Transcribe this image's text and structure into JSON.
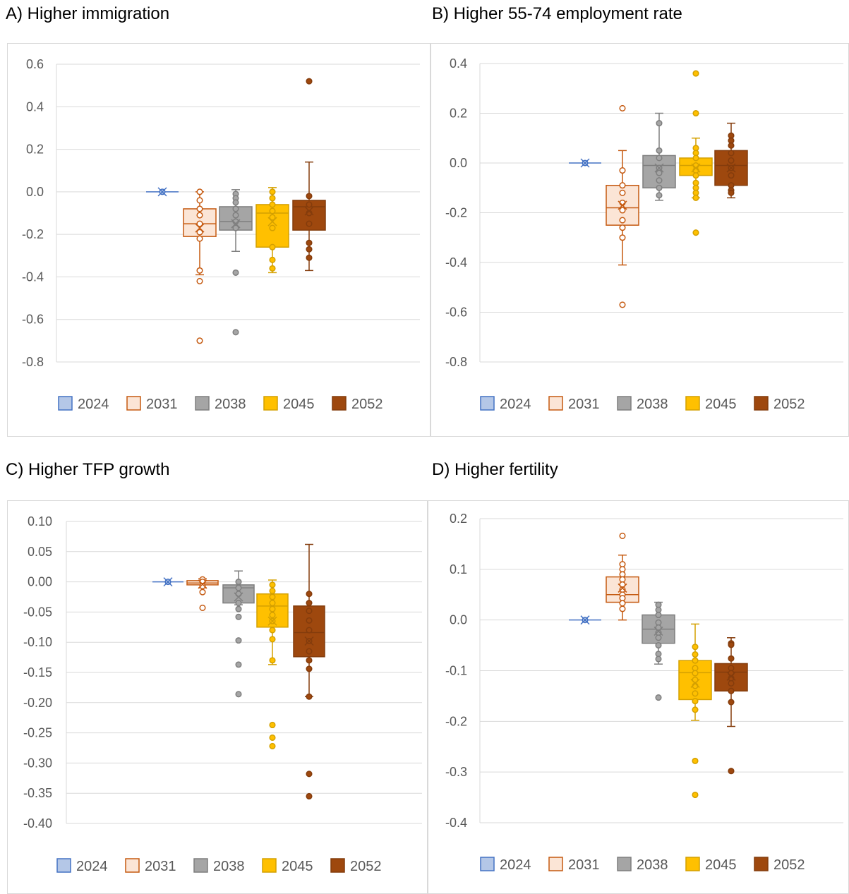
{
  "panels": [
    {
      "title": "A) Higher immigration"
    },
    {
      "title": "B) Higher 55-74 employment rate"
    },
    {
      "title": "C) Higher TFP growth"
    },
    {
      "title": "D) Higher fertility"
    }
  ],
  "colors": {
    "2024": {
      "fill": "#b4c7e7",
      "stroke": "#4472c4"
    },
    "2031": {
      "fill": "#fbe5d6",
      "stroke": "#c55a11"
    },
    "2038": {
      "fill": "#a5a5a5",
      "stroke": "#7f7f7f"
    },
    "2045": {
      "fill": "#ffc000",
      "stroke": "#d4a000"
    },
    "2052": {
      "fill": "#9e480e",
      "stroke": "#843c0c"
    },
    "grid": "#d9d9d9"
  },
  "chart_data": [
    {
      "type": "box",
      "title": "A) Higher immigration",
      "ylim": [
        -0.8,
        0.6
      ],
      "yticks": [
        "0.6",
        "0.4",
        "0.2",
        "0.0",
        "-0.2",
        "-0.4",
        "-0.6",
        "-0.8"
      ],
      "yticks_values": [
        0.6,
        0.4,
        0.2,
        0.0,
        -0.2,
        -0.4,
        -0.6,
        -0.8
      ],
      "grid": true,
      "legend": "bottom",
      "series": [
        {
          "name": "2024",
          "min": 0.0,
          "q1": 0.0,
          "median": 0.0,
          "q3": 0.0,
          "max": 0.0,
          "mean": 0.0,
          "points": [
            0.0
          ]
        },
        {
          "name": "2031",
          "min": -0.39,
          "q1": -0.21,
          "median": -0.15,
          "q3": -0.08,
          "max": 0.0,
          "mean": -0.17,
          "points": [
            0.0,
            -0.04,
            -0.08,
            -0.11,
            -0.15,
            -0.19,
            -0.22,
            -0.37,
            -0.42,
            -0.7
          ]
        },
        {
          "name": "2038",
          "min": -0.28,
          "q1": -0.18,
          "median": -0.14,
          "q3": -0.07,
          "max": 0.01,
          "mean": -0.15,
          "points": [
            -0.01,
            -0.03,
            -0.05,
            -0.08,
            -0.11,
            -0.14,
            -0.17,
            -0.38,
            -0.66
          ]
        },
        {
          "name": "2045",
          "min": -0.38,
          "q1": -0.26,
          "median": -0.1,
          "q3": -0.06,
          "max": 0.02,
          "mean": -0.14,
          "points": [
            0.0,
            -0.03,
            -0.06,
            -0.09,
            -0.12,
            -0.17,
            -0.26,
            -0.32,
            -0.36
          ]
        },
        {
          "name": "2052",
          "min": -0.37,
          "q1": -0.18,
          "median": -0.07,
          "q3": -0.04,
          "max": 0.14,
          "mean": -0.09,
          "points": [
            0.52,
            -0.02,
            -0.06,
            -0.1,
            -0.15,
            -0.24,
            -0.27,
            -0.31
          ]
        }
      ]
    },
    {
      "type": "box",
      "title": "B) Higher 55-74 employment rate",
      "ylim": [
        -0.8,
        0.4
      ],
      "yticks": [
        "0.4",
        "0.2",
        "0.0",
        "-0.2",
        "-0.4",
        "-0.6",
        "-0.8"
      ],
      "yticks_values": [
        0.4,
        0.2,
        0.0,
        -0.2,
        -0.4,
        -0.6,
        -0.8
      ],
      "grid": true,
      "legend": "bottom",
      "series": [
        {
          "name": "2024",
          "min": 0.0,
          "q1": 0.0,
          "median": 0.0,
          "q3": 0.0,
          "max": 0.0,
          "mean": 0.0,
          "points": [
            0.0
          ]
        },
        {
          "name": "2031",
          "min": -0.41,
          "q1": -0.25,
          "median": -0.18,
          "q3": -0.09,
          "max": 0.05,
          "mean": -0.17,
          "points": [
            0.22,
            -0.03,
            -0.09,
            -0.12,
            -0.16,
            -0.19,
            -0.23,
            -0.26,
            -0.3,
            -0.57
          ]
        },
        {
          "name": "2038",
          "min": -0.15,
          "q1": -0.1,
          "median": -0.01,
          "q3": 0.03,
          "max": 0.2,
          "mean": -0.02,
          "points": [
            0.16,
            0.05,
            0.02,
            -0.02,
            -0.04,
            -0.07,
            -0.1,
            -0.13
          ]
        },
        {
          "name": "2045",
          "min": -0.14,
          "q1": -0.05,
          "median": -0.01,
          "q3": 0.02,
          "max": 0.1,
          "mean": -0.02,
          "points": [
            0.36,
            0.2,
            0.06,
            0.04,
            0.02,
            -0.01,
            -0.03,
            -0.05,
            -0.08,
            -0.1,
            -0.12,
            -0.14,
            -0.28
          ]
        },
        {
          "name": "2052",
          "min": -0.14,
          "q1": -0.09,
          "median": -0.01,
          "q3": 0.05,
          "max": 0.16,
          "mean": -0.02,
          "points": [
            0.11,
            0.09,
            0.07,
            0.04,
            0.01,
            -0.02,
            -0.05,
            -0.09,
            -0.11,
            -0.12
          ]
        }
      ]
    },
    {
      "type": "box",
      "title": "C) Higher TFP growth",
      "ylim": [
        -0.4,
        0.1
      ],
      "yticks": [
        "0.10",
        "0.05",
        "0.00",
        "-0.05",
        "-0.10",
        "-0.15",
        "-0.20",
        "-0.25",
        "-0.30",
        "-0.35",
        "-0.40"
      ],
      "yticks_values": [
        0.1,
        0.05,
        0.0,
        -0.05,
        -0.1,
        -0.15,
        -0.2,
        -0.25,
        -0.3,
        -0.35,
        -0.4
      ],
      "grid": true,
      "legend": "bottom",
      "series": [
        {
          "name": "2024",
          "min": 0.0,
          "q1": 0.0,
          "median": 0.0,
          "q3": 0.0,
          "max": 0.0,
          "mean": 0.0,
          "points": [
            0.0
          ]
        },
        {
          "name": "2031",
          "min": -0.01,
          "q1": -0.005,
          "median": -0.002,
          "q3": 0.002,
          "max": 0.005,
          "mean": -0.004,
          "points": [
            0.004,
            0.0,
            -0.007,
            -0.017,
            -0.043
          ]
        },
        {
          "name": "2038",
          "min": -0.038,
          "q1": -0.035,
          "median": -0.01,
          "q3": -0.005,
          "max": 0.018,
          "mean": -0.025,
          "points": [
            0.0,
            -0.01,
            -0.02,
            -0.035,
            -0.045,
            -0.058,
            -0.097,
            -0.137,
            -0.186
          ]
        },
        {
          "name": "2045",
          "min": -0.137,
          "q1": -0.075,
          "median": -0.04,
          "q3": -0.02,
          "max": 0.003,
          "mean": -0.065,
          "points": [
            -0.005,
            -0.015,
            -0.025,
            -0.035,
            -0.045,
            -0.055,
            -0.065,
            -0.08,
            -0.095,
            -0.13,
            -0.237,
            -0.258,
            -0.272
          ]
        },
        {
          "name": "2052",
          "min": -0.19,
          "q1": -0.124,
          "median": -0.084,
          "q3": -0.04,
          "max": 0.062,
          "mean": -0.098,
          "points": [
            -0.02,
            -0.035,
            -0.048,
            -0.064,
            -0.08,
            -0.098,
            -0.115,
            -0.13,
            -0.144,
            -0.19,
            -0.318,
            -0.355
          ]
        }
      ]
    },
    {
      "type": "box",
      "title": "D) Higher fertility",
      "ylim": [
        -0.4,
        0.2
      ],
      "yticks": [
        "0.2",
        "0.1",
        "0.0",
        "-0.1",
        "-0.2",
        "-0.3",
        "-0.4"
      ],
      "yticks_values": [
        0.2,
        0.1,
        0.0,
        -0.1,
        -0.2,
        -0.3,
        -0.4
      ],
      "grid": true,
      "legend": "bottom",
      "series": [
        {
          "name": "2024",
          "min": 0.0,
          "q1": 0.0,
          "median": 0.0,
          "q3": 0.0,
          "max": 0.0,
          "mean": 0.0,
          "points": [
            0.0
          ]
        },
        {
          "name": "2031",
          "min": 0.0,
          "q1": 0.035,
          "median": 0.05,
          "q3": 0.085,
          "max": 0.128,
          "mean": 0.063,
          "points": [
            0.166,
            0.11,
            0.1,
            0.09,
            0.08,
            0.07,
            0.06,
            0.05,
            0.043,
            0.033,
            0.022
          ]
        },
        {
          "name": "2038",
          "min": -0.087,
          "q1": -0.046,
          "median": -0.018,
          "q3": 0.01,
          "max": 0.035,
          "mean": -0.022,
          "points": [
            0.03,
            0.02,
            0.01,
            -0.005,
            -0.015,
            -0.025,
            -0.035,
            -0.05,
            -0.067,
            -0.077,
            -0.153
          ]
        },
        {
          "name": "2045",
          "min": -0.198,
          "q1": -0.157,
          "median": -0.104,
          "q3": -0.08,
          "max": -0.008,
          "mean": -0.125,
          "points": [
            -0.053,
            -0.068,
            -0.08,
            -0.095,
            -0.105,
            -0.118,
            -0.13,
            -0.145,
            -0.16,
            -0.177,
            -0.278,
            -0.345
          ]
        },
        {
          "name": "2052",
          "min": -0.21,
          "q1": -0.14,
          "median": -0.103,
          "q3": -0.086,
          "max": -0.035,
          "mean": -0.111,
          "points": [
            -0.046,
            -0.049,
            -0.076,
            -0.095,
            -0.105,
            -0.115,
            -0.125,
            -0.14,
            -0.162,
            -0.298
          ]
        }
      ]
    }
  ]
}
